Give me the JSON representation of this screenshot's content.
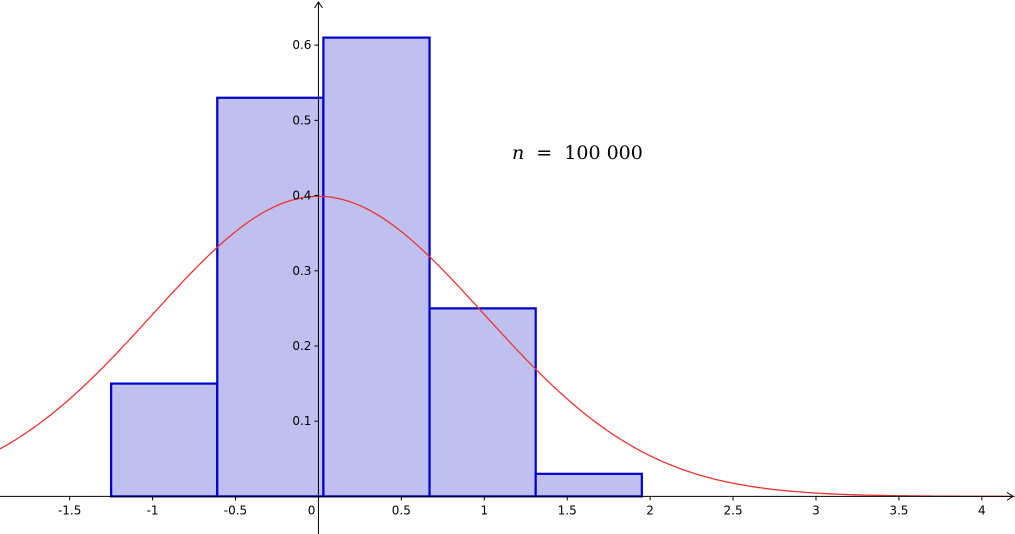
{
  "chart_data": {
    "type": "bar",
    "bins": [
      {
        "x0": -1.25,
        "x1": -0.61,
        "value": 0.15
      },
      {
        "x0": -0.61,
        "x1": 0.03,
        "value": 0.53
      },
      {
        "x0": 0.03,
        "x1": 0.67,
        "value": 0.61
      },
      {
        "x0": 0.67,
        "x1": 1.31,
        "value": 0.25
      },
      {
        "x0": 1.31,
        "x1": 1.95,
        "value": 0.03
      },
      {
        "x0": 1.95,
        "x1": 2.59,
        "value": 0.0
      },
      {
        "x0": 2.59,
        "x1": 3.23,
        "value": 0.0
      },
      {
        "x0": 3.23,
        "x1": 3.87,
        "value": 0.0
      }
    ],
    "curve": {
      "type": "normal-density",
      "mean": 0,
      "sd": 1
    },
    "annotation": {
      "variable": "n",
      "operator": "=",
      "value": "100 000"
    },
    "x_ticks": [
      "-1.5",
      "-1",
      "-0.5",
      "0",
      "0.5",
      "1",
      "1.5",
      "2",
      "2.5",
      "3",
      "3.5",
      "4"
    ],
    "y_ticks": [
      "0.1",
      "0.2",
      "0.3",
      "0.4",
      "0.5",
      "0.6"
    ],
    "xlim": [
      -1.92,
      4.2
    ],
    "ylim": [
      -0.05,
      0.66
    ],
    "title": "",
    "xlabel": "",
    "ylabel": "",
    "grid": false,
    "colors": {
      "bar_fill": "#c0c0f0",
      "bar_stroke": "#0000cc",
      "curve": "#ee3333",
      "axis": "#000000"
    }
  }
}
